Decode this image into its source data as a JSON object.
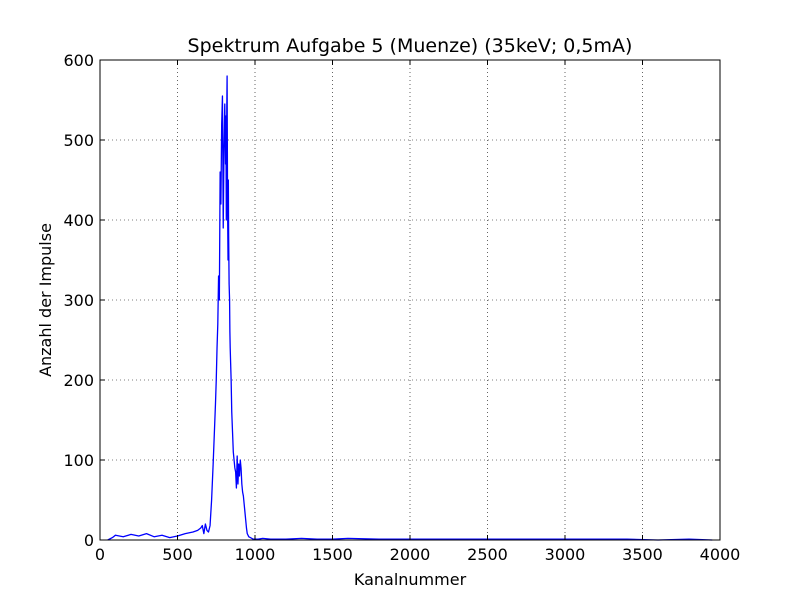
{
  "chart_data": {
    "type": "line",
    "title": "Spektrum Aufgabe 5 (Muenze) (35keV; 0,5mA)",
    "xlabel": "Kanalnummer",
    "ylabel": "Anzahl der Impulse",
    "xlim": [
      0,
      4000
    ],
    "ylim": [
      0,
      600
    ],
    "xticks": [
      "0",
      "500",
      "1000",
      "1500",
      "2000",
      "2500",
      "3000",
      "3500",
      "4000"
    ],
    "yticks": [
      "0",
      "100",
      "200",
      "300",
      "400",
      "500",
      "600"
    ],
    "grid": true,
    "legend": "none",
    "series": [
      {
        "color": "#0000ff",
        "x": [
          50,
          80,
          100,
          150,
          200,
          250,
          300,
          350,
          400,
          450,
          500,
          550,
          600,
          630,
          650,
          660,
          670,
          680,
          690,
          700,
          710,
          720,
          730,
          740,
          745,
          750,
          755,
          760,
          765,
          770,
          775,
          780,
          785,
          790,
          795,
          800,
          805,
          810,
          812,
          815,
          818,
          820,
          823,
          826,
          828,
          830,
          833,
          836,
          838,
          840,
          843,
          846,
          848,
          850,
          855,
          860,
          865,
          870,
          875,
          880,
          885,
          890,
          895,
          900,
          905,
          910,
          915,
          920,
          925,
          930,
          935,
          940,
          945,
          950,
          960,
          970,
          980,
          990,
          1000,
          1020,
          1050,
          1100,
          1200,
          1300,
          1400,
          1500,
          1600,
          1800,
          2000,
          2200,
          2400,
          2600,
          2800,
          3000,
          3200,
          3400,
          3600,
          3800,
          3950
        ],
        "y": [
          0,
          3,
          6,
          4,
          7,
          5,
          8,
          4,
          6,
          3,
          5,
          8,
          10,
          12,
          15,
          18,
          8,
          20,
          12,
          10,
          18,
          50,
          95,
          145,
          170,
          200,
          240,
          270,
          330,
          300,
          460,
          420,
          520,
          555,
          390,
          490,
          545,
          470,
          530,
          400,
          540,
          580,
          420,
          350,
          450,
          380,
          320,
          300,
          260,
          240,
          220,
          200,
          180,
          160,
          135,
          110,
          100,
          90,
          85,
          65,
          105,
          70,
          95,
          80,
          100,
          90,
          70,
          60,
          55,
          45,
          35,
          25,
          15,
          8,
          4,
          3,
          2,
          1,
          1,
          1,
          2,
          1,
          1,
          2,
          1,
          1,
          2,
          1,
          1,
          1,
          1,
          1,
          1,
          1,
          1,
          1,
          0,
          1,
          0
        ]
      }
    ]
  }
}
